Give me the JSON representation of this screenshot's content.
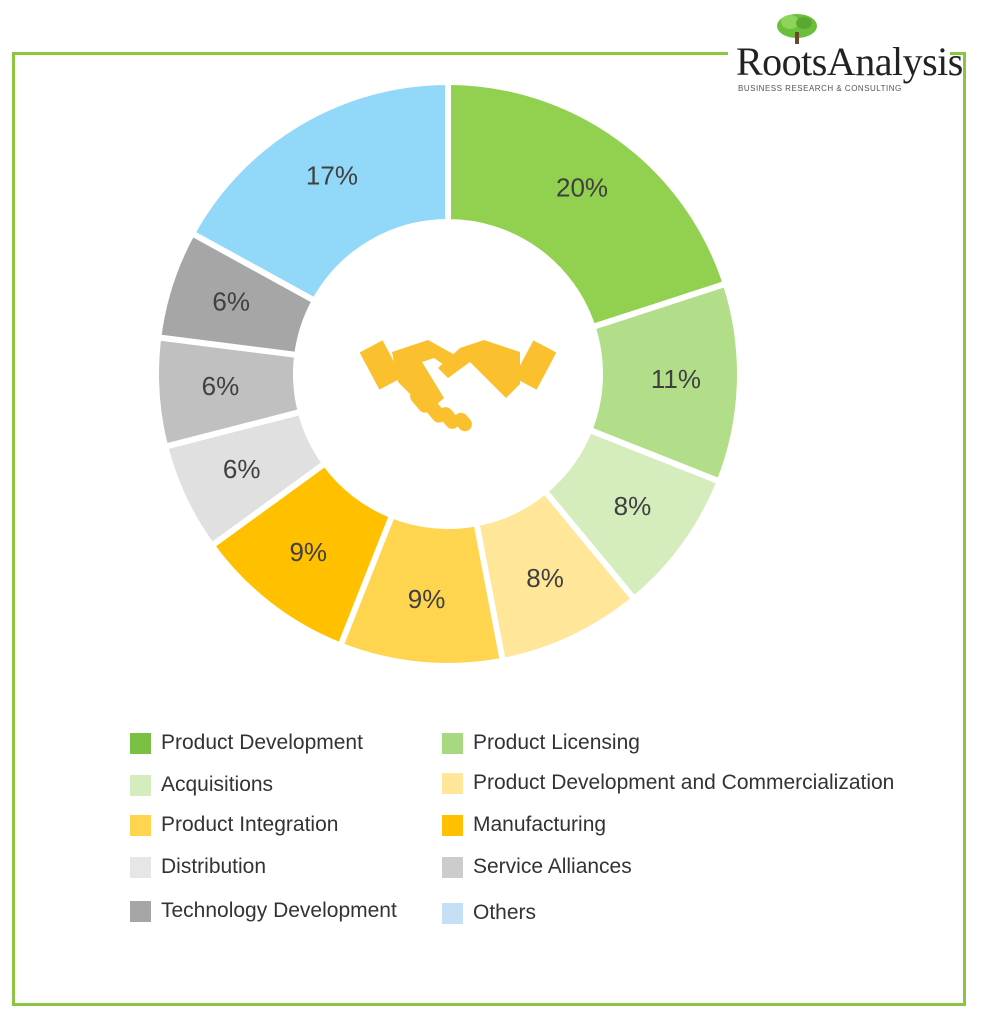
{
  "logo": {
    "name": "RootsAnalysis",
    "tagline": "BUSINESS RESEARCH & CONSULTING"
  },
  "colors": {
    "frame": "#8cc63f",
    "handshake": "#fbc02d"
  },
  "chart_data": {
    "type": "pie",
    "variant": "donut",
    "title": "",
    "center_icon": "handshake-icon",
    "legend_position": "bottom",
    "slices": [
      {
        "label": "Product Development",
        "value": 20,
        "display": "20%",
        "color": "#92d050"
      },
      {
        "label": "Product Licensing",
        "value": 11,
        "display": "11%",
        "color": "#b3de89"
      },
      {
        "label": "Acquisitions",
        "value": 8,
        "display": "8%",
        "color": "#d5ecbd"
      },
      {
        "label": "Product Development and Commercialization",
        "value": 8,
        "display": "8%",
        "color": "#ffe699"
      },
      {
        "label": "Product Integration",
        "value": 9,
        "display": "9%",
        "color": "#ffd44f"
      },
      {
        "label": "Manufacturing",
        "value": 9,
        "display": "9%",
        "color": "#ffc000"
      },
      {
        "label": "Distribution",
        "value": 6,
        "display": "6%",
        "color": "#e0e0e0"
      },
      {
        "label": "Service Alliances",
        "value": 6,
        "display": "6%",
        "color": "#c0c0c0"
      },
      {
        "label": "Technology Development",
        "value": 6,
        "display": "6%",
        "color": "#a6a6a6"
      },
      {
        "label": "Others",
        "value": 17,
        "display": "17%",
        "color": "#92d8f8"
      }
    ],
    "legend": [
      {
        "label": "Product Development",
        "color": "#7ac143"
      },
      {
        "label": "Product Licensing",
        "color": "#a8d87f"
      },
      {
        "label": "Acquisitions",
        "color": "#d5ecbd"
      },
      {
        "label": "Product Development and Commercialization",
        "color": "#ffe699"
      },
      {
        "label": "Product Integration",
        "color": "#ffd44f"
      },
      {
        "label": "Manufacturing",
        "color": "#ffc000"
      },
      {
        "label": "Distribution",
        "color": "#e6e6e6"
      },
      {
        "label": "Service Alliances",
        "color": "#cccccc"
      },
      {
        "label": "Technology Development",
        "color": "#a6a6a6"
      },
      {
        "label": "Others",
        "color": "#c5dff5"
      }
    ]
  }
}
